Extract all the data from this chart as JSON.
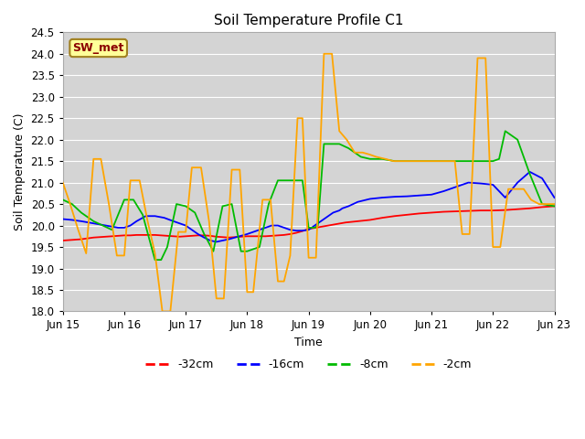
{
  "title": "Soil Temperature Profile C1",
  "xlabel": "Time",
  "ylabel": "Soil Temperature (C)",
  "ylim": [
    18.0,
    24.5
  ],
  "yticks": [
    18.0,
    18.5,
    19.0,
    19.5,
    20.0,
    20.5,
    21.0,
    21.5,
    22.0,
    22.5,
    23.0,
    23.5,
    24.0,
    24.5
  ],
  "annotation": "SW_met",
  "annotation_color": "#8B0000",
  "annotation_bg": "#FFFF99",
  "annotation_border": "#A08020",
  "background_color": "#FFFFFF",
  "plot_bg": "#D8D8D8",
  "grid_color": "#FFFFFF",
  "series": {
    "-32cm": {
      "color": "#FF0000",
      "times_days": [
        0.0,
        0.1,
        0.2,
        0.3,
        0.4,
        0.5,
        0.6,
        0.7,
        0.8,
        0.9,
        1.0,
        1.1,
        1.2,
        1.3,
        1.4,
        1.5,
        1.6,
        1.7,
        1.8,
        1.9,
        2.0,
        2.1,
        2.2,
        2.3,
        2.4,
        2.5,
        2.6,
        2.7,
        2.8,
        2.9,
        3.0,
        3.1,
        3.2,
        3.3,
        3.4,
        3.5,
        3.6,
        3.7,
        3.8,
        3.9,
        4.0,
        4.2,
        4.4,
        4.6,
        4.8,
        5.0,
        5.2,
        5.4,
        5.6,
        5.8,
        6.0,
        6.2,
        6.4,
        6.6,
        6.8,
        7.0,
        7.2,
        7.4,
        7.6,
        7.8,
        8.0
      ],
      "values": [
        19.65,
        19.66,
        19.67,
        19.68,
        19.7,
        19.72,
        19.73,
        19.74,
        19.75,
        19.76,
        19.77,
        19.77,
        19.78,
        19.78,
        19.78,
        19.78,
        19.77,
        19.76,
        19.75,
        19.74,
        19.75,
        19.76,
        19.77,
        19.77,
        19.76,
        19.74,
        19.73,
        19.72,
        19.73,
        19.74,
        19.75,
        19.75,
        19.75,
        19.75,
        19.76,
        19.77,
        19.78,
        19.8,
        19.83,
        19.87,
        19.92,
        19.97,
        20.02,
        20.07,
        20.1,
        20.13,
        20.18,
        20.22,
        20.25,
        20.28,
        20.3,
        20.32,
        20.33,
        20.34,
        20.35,
        20.35,
        20.36,
        20.38,
        20.4,
        20.43,
        20.45
      ]
    },
    "-16cm": {
      "color": "#0000FF",
      "times_days": [
        0.0,
        0.15,
        0.3,
        0.5,
        0.7,
        0.9,
        1.0,
        1.1,
        1.2,
        1.35,
        1.5,
        1.65,
        1.8,
        1.9,
        2.0,
        2.1,
        2.2,
        2.3,
        2.4,
        2.5,
        2.6,
        2.7,
        2.8,
        2.9,
        3.0,
        3.1,
        3.2,
        3.3,
        3.4,
        3.5,
        3.6,
        3.7,
        3.8,
        3.9,
        4.0,
        4.1,
        4.2,
        4.3,
        4.4,
        4.5,
        4.55,
        4.65,
        4.8,
        5.0,
        5.2,
        5.4,
        5.6,
        5.8,
        6.0,
        6.2,
        6.4,
        6.6,
        6.8,
        7.0,
        7.1,
        7.2,
        7.4,
        7.6,
        7.8,
        8.0
      ],
      "values": [
        20.15,
        20.13,
        20.1,
        20.05,
        20.0,
        19.95,
        19.95,
        20.0,
        20.1,
        20.22,
        20.22,
        20.18,
        20.1,
        20.05,
        20.0,
        19.9,
        19.8,
        19.72,
        19.65,
        19.62,
        19.65,
        19.68,
        19.72,
        19.76,
        19.8,
        19.85,
        19.9,
        19.95,
        20.0,
        20.0,
        19.95,
        19.9,
        19.88,
        19.88,
        19.9,
        20.0,
        20.1,
        20.2,
        20.3,
        20.35,
        20.4,
        20.45,
        20.55,
        20.62,
        20.65,
        20.67,
        20.68,
        20.7,
        20.72,
        20.8,
        20.9,
        21.0,
        20.98,
        20.95,
        20.8,
        20.65,
        21.0,
        21.25,
        21.1,
        20.65
      ]
    },
    "-8cm": {
      "color": "#00BB00",
      "times_days": [
        0.0,
        0.15,
        0.3,
        0.5,
        0.65,
        0.8,
        1.0,
        1.15,
        1.3,
        1.5,
        1.6,
        1.7,
        1.85,
        2.0,
        2.15,
        2.3,
        2.45,
        2.6,
        2.75,
        2.9,
        3.0,
        3.1,
        3.2,
        3.35,
        3.5,
        3.6,
        3.7,
        3.8,
        3.9,
        4.0,
        4.1,
        4.15,
        4.25,
        4.35,
        4.5,
        4.65,
        4.75,
        4.85,
        5.0,
        5.2,
        5.4,
        5.6,
        5.8,
        6.0,
        6.2,
        6.4,
        6.6,
        6.8,
        7.0,
        7.1,
        7.2,
        7.4,
        7.6,
        7.8,
        8.0
      ],
      "values": [
        20.6,
        20.5,
        20.3,
        20.1,
        20.0,
        19.9,
        20.6,
        20.6,
        20.25,
        19.2,
        19.2,
        19.5,
        20.5,
        20.45,
        20.3,
        19.8,
        19.4,
        20.45,
        20.5,
        19.4,
        19.4,
        19.45,
        19.5,
        20.5,
        21.05,
        21.05,
        21.05,
        21.05,
        21.05,
        19.95,
        19.95,
        20.0,
        21.9,
        21.9,
        21.9,
        21.8,
        21.7,
        21.6,
        21.55,
        21.55,
        21.5,
        21.5,
        21.5,
        21.5,
        21.5,
        21.5,
        21.5,
        21.5,
        21.5,
        21.55,
        22.2,
        22.0,
        21.2,
        20.5,
        20.45
      ]
    },
    "-2cm": {
      "color": "#FFA500",
      "times_days": [
        0.0,
        0.12,
        0.25,
        0.38,
        0.5,
        0.62,
        0.75,
        0.88,
        1.0,
        1.1,
        1.25,
        1.38,
        1.5,
        1.62,
        1.75,
        1.88,
        2.0,
        2.1,
        2.25,
        2.38,
        2.5,
        2.62,
        2.75,
        2.88,
        3.0,
        3.1,
        3.25,
        3.38,
        3.5,
        3.6,
        3.7,
        3.82,
        3.9,
        4.0,
        4.12,
        4.25,
        4.38,
        4.5,
        4.62,
        4.75,
        4.88,
        5.0,
        5.1,
        5.25,
        5.38,
        5.5,
        5.62,
        5.75,
        5.88,
        6.0,
        6.12,
        6.25,
        6.38,
        6.5,
        6.62,
        6.75,
        6.88,
        7.0,
        7.12,
        7.25,
        7.38,
        7.5,
        7.62,
        7.75,
        7.88,
        8.0
      ],
      "values": [
        21.0,
        20.5,
        19.9,
        19.35,
        21.55,
        21.55,
        20.5,
        19.3,
        19.3,
        21.05,
        21.05,
        20.1,
        19.35,
        18.0,
        18.0,
        19.85,
        19.85,
        21.35,
        21.35,
        20.1,
        18.3,
        18.3,
        21.3,
        21.3,
        18.45,
        18.45,
        20.6,
        20.6,
        18.7,
        18.7,
        19.3,
        22.5,
        22.5,
        19.25,
        19.25,
        24.0,
        24.0,
        22.2,
        22.0,
        21.7,
        21.7,
        21.65,
        21.6,
        21.55,
        21.5,
        21.5,
        21.5,
        21.5,
        21.5,
        21.5,
        21.5,
        21.5,
        21.5,
        19.8,
        19.8,
        23.9,
        23.9,
        19.5,
        19.5,
        20.85,
        20.85,
        20.85,
        20.6,
        20.5,
        20.5,
        20.5
      ]
    }
  },
  "xtick_labels": [
    "Jun 15",
    "Jun 16",
    "Jun 17",
    "Jun 18",
    "Jun 19",
    "Jun 20",
    "Jun 21",
    "Jun 22",
    "Jun 23"
  ],
  "legend_labels": [
    "-32cm",
    "-16cm",
    "-8cm",
    "-2cm"
  ],
  "legend_colors": [
    "#FF0000",
    "#0000FF",
    "#00BB00",
    "#FFA500"
  ]
}
